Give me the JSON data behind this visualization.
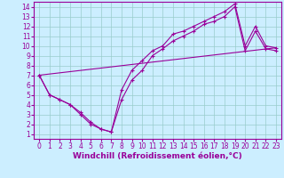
{
  "xlabel": "Windchill (Refroidissement éolien,°C)",
  "background_color": "#cceeff",
  "line_color": "#990099",
  "xlim": [
    -0.5,
    23.5
  ],
  "ylim": [
    0.5,
    14.5
  ],
  "xticks": [
    0,
    1,
    2,
    3,
    4,
    5,
    6,
    7,
    8,
    9,
    10,
    11,
    12,
    13,
    14,
    15,
    16,
    17,
    18,
    19,
    20,
    21,
    22,
    23
  ],
  "yticks": [
    1,
    2,
    3,
    4,
    5,
    6,
    7,
    8,
    9,
    10,
    11,
    12,
    13,
    14
  ],
  "series1_x": [
    0,
    1,
    2,
    3,
    4,
    5,
    6,
    7,
    8,
    9,
    10,
    11,
    12,
    13,
    14,
    15,
    16,
    17,
    18,
    19,
    20,
    21,
    22,
    23
  ],
  "series1_y": [
    7.0,
    5.0,
    4.5,
    4.0,
    3.2,
    2.2,
    1.5,
    1.2,
    5.5,
    7.5,
    8.5,
    9.5,
    10.0,
    11.2,
    11.5,
    12.0,
    12.5,
    13.0,
    13.5,
    14.3,
    10.0,
    12.0,
    10.0,
    9.8
  ],
  "series2_x": [
    0,
    1,
    2,
    3,
    4,
    5,
    6,
    7,
    8,
    9,
    10,
    11,
    12,
    13,
    14,
    15,
    16,
    17,
    18,
    19,
    20,
    21,
    22,
    23
  ],
  "series2_y": [
    7.0,
    5.0,
    4.5,
    4.0,
    3.0,
    2.0,
    1.5,
    1.2,
    4.5,
    6.5,
    7.5,
    9.0,
    9.7,
    10.5,
    11.0,
    11.5,
    12.2,
    12.5,
    13.0,
    14.0,
    9.5,
    11.5,
    9.7,
    9.5
  ],
  "series3_x": [
    0,
    23
  ],
  "series3_y": [
    7.0,
    9.8
  ],
  "grid_color": "#99cccc",
  "tick_fontsize": 5.5,
  "xlabel_fontsize": 6.5,
  "marker": "+"
}
